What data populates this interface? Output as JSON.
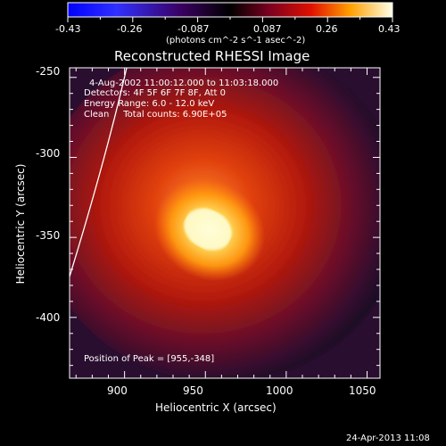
{
  "colorbar": {
    "ticks": [
      "-0.43",
      "-0.26",
      "-0.087",
      "0.087",
      "0.26",
      "0.43"
    ],
    "unit_label": "(photons cm^-2 s^-1 asec^-2)"
  },
  "title": "Reconstructed RHESSI Image",
  "info_lines": [
    "4-Aug-2002 11:00:12.000 to 11:03:18.000",
    "Detectors: 4F 5F 6F 7F 8F, Att 0",
    "Energy Range: 6.0 - 12.0 keV",
    "Clean     Total counts: 6.90E+05"
  ],
  "peak_text": "Position of Peak = [955,-348]",
  "axes": {
    "xlabel": "Heliocentric X (arcsec)",
    "ylabel": "Heliocentric Y (arcsec)",
    "xticks": [
      "900",
      "950",
      "1000",
      "1050"
    ],
    "yticks": [
      "-250",
      "-300",
      "-350",
      "-400"
    ],
    "xlim": [
      866,
      1058
    ],
    "ylim": [
      -438,
      -244
    ]
  },
  "image": {
    "peak_x": 955,
    "peak_y": -348,
    "colormap": [
      "#000000",
      "#2a0a34",
      "#5a0d24",
      "#8c1608",
      "#c43a00",
      "#e87800",
      "#f8c040",
      "#ffffe0"
    ]
  },
  "footer_date": "24-Apr-2013 11:08"
}
